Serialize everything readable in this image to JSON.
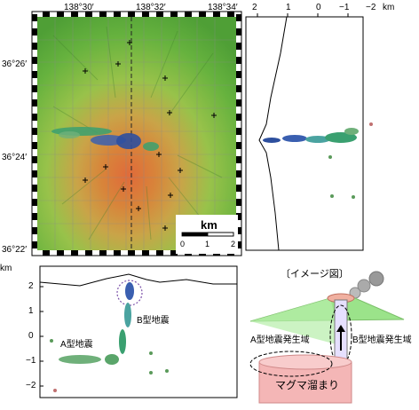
{
  "map": {
    "lon_labels": [
      "138°30′",
      "138°32′",
      "138°34′"
    ],
    "lat_labels": [
      "36°26′",
      "36°24′",
      "36°22′"
    ],
    "scale_unit": "km",
    "scale_ticks": [
      "0",
      "1",
      "2"
    ]
  },
  "ew_section": {
    "x_ticks": [
      "2",
      "1",
      "0",
      "−1",
      "−2"
    ],
    "unit": "km"
  },
  "depth_section": {
    "unit": "km",
    "y_ticks": [
      "2",
      "1",
      "0",
      "−1",
      "−2"
    ],
    "label_a": "A型地震",
    "label_b": "B型地震"
  },
  "schematic": {
    "title": "〔イメージ図〕",
    "label_a_zone": "A型地震発生域",
    "label_b_zone": "B型地震発生域",
    "magma": "マグマ溜まり"
  },
  "colors": {
    "map_green": "#5fae3a",
    "map_orange": "#d28a3a",
    "magma_pink": "#f4b6b6",
    "cone_green": "#9be38a",
    "hypocenter_blue": "#3a5fb0",
    "hypocenter_green": "#3aa070",
    "hypocenter_teal": "#4aa3a0"
  }
}
